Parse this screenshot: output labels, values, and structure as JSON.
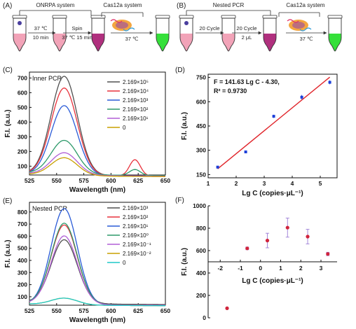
{
  "panels": {
    "A": {
      "label": "(A)",
      "system_label": "ONRPA system",
      "step1_temp": "37 ℃",
      "step1_time": "10 min",
      "step2_label": "Spin",
      "step2_temp": "37 ℃",
      "step2_time": "15 min",
      "cas_label": "Cas12a system",
      "cas_temp": "37 ℃"
    },
    "B": {
      "label": "(B)",
      "system_label": "Nested PCR",
      "step1": "20 Cycle",
      "step2": "20 Cycle",
      "step2_vol": "2 μL",
      "cas_label": "Cas12a system",
      "cas_temp": "37 ℃"
    }
  },
  "colors": {
    "c1": "#505050",
    "c2": "#e8323c",
    "c3": "#2a5bd7",
    "c4": "#2e9a6a",
    "c5": "#b05ed6",
    "c6": "#c8a000",
    "c7": "#1fc9c9",
    "marker_blue": "#1c3fd9",
    "marker_red": "#d0243c",
    "fit_line": "#e0242a",
    "err_purple": "#9a7bd6",
    "tube_pink": "#f2a3b8",
    "tube_magenta": "#b0307e",
    "tube_green": "#35e03a"
  },
  "chart_data": [
    {
      "panel": "(C)",
      "type": "line",
      "title": "Inner PCR",
      "xlabel": "Wavelength (nm)",
      "ylabel": "F.I. (a.u.)",
      "xlim": [
        525,
        650
      ],
      "ylim": [
        40,
        740
      ],
      "xticks": [
        "525",
        "550",
        "575",
        "600",
        "625",
        "650"
      ],
      "yticks": [
        "100",
        "200",
        "300",
        "400",
        "500",
        "600",
        "700"
      ],
      "legend": "top-right",
      "series": [
        {
          "name": "2.169×10⁵",
          "color_key": "c1",
          "peak": 720,
          "baseline": 50,
          "bump": 0
        },
        {
          "name": "2.169×10⁴",
          "color_key": "c2",
          "peak": 640,
          "baseline": 50,
          "bump": 110
        },
        {
          "name": "2.169×10³",
          "color_key": "c3",
          "peak": 520,
          "baseline": 48,
          "bump": 0
        },
        {
          "name": "2.169×10²",
          "color_key": "c4",
          "peak": 285,
          "baseline": 55,
          "bump": 40
        },
        {
          "name": "2.169×10¹",
          "color_key": "c5",
          "peak": 200,
          "baseline": 50,
          "bump": 0
        },
        {
          "name": "0",
          "color_key": "c6",
          "peak": 165,
          "baseline": 45,
          "bump": 0
        }
      ]
    },
    {
      "panel": "(D)",
      "type": "scatter",
      "equation": "F = 141.63 Lg C - 4.30,",
      "r2": "R² = 0.9730",
      "xlabel": "Lg C (copies·μL⁻¹)",
      "ylabel": "F.I. (a.u.)",
      "xlim": [
        1,
        5.6
      ],
      "ylim": [
        130,
        770
      ],
      "xticks": [
        1,
        2,
        3,
        4,
        5
      ],
      "yticks": [
        150,
        300,
        450,
        600,
        750
      ],
      "points": [
        {
          "x": 1.34,
          "y": 196,
          "err": 8
        },
        {
          "x": 2.34,
          "y": 290,
          "err": 6
        },
        {
          "x": 3.34,
          "y": 510,
          "err": 10
        },
        {
          "x": 4.34,
          "y": 628,
          "err": 14
        },
        {
          "x": 5.34,
          "y": 720,
          "err": 12
        }
      ],
      "fit": {
        "slope": 141.63,
        "intercept": -4.3,
        "x_range": [
          1.34,
          5.34
        ]
      }
    },
    {
      "panel": "(E)",
      "type": "line",
      "title": "Nested PCR",
      "xlabel": "Wavelength (nm)",
      "ylabel": "F.I. (a.u.)",
      "xlim": [
        525,
        650
      ],
      "ylim": [
        30,
        880
      ],
      "xticks": [
        "525",
        "550",
        "575",
        "600",
        "625",
        "650"
      ],
      "yticks": [
        "100",
        "200",
        "300",
        "400",
        "500",
        "600",
        "700",
        "800"
      ],
      "legend": "top-right",
      "series": [
        {
          "name": "2.169×10³",
          "color_key": "c1",
          "peak": 580,
          "baseline": 55,
          "bump": 0
        },
        {
          "name": "2.169×10²",
          "color_key": "c2",
          "peak": 700,
          "baseline": 45,
          "bump": 0
        },
        {
          "name": "2.169×10¹",
          "color_key": "c3",
          "peak": 835,
          "baseline": 40,
          "bump": 0
        },
        {
          "name": "2.169×10⁰",
          "color_key": "c4",
          "peak": 715,
          "baseline": 45,
          "bump": 0
        },
        {
          "name": "2.169×10⁻¹",
          "color_key": "c5",
          "peak": 610,
          "baseline": 45,
          "bump": 0
        },
        {
          "name": "2.169×10⁻²",
          "color_key": "c6",
          "peak": 95,
          "baseline": 40,
          "bump": 0
        },
        {
          "name": "0",
          "color_key": "c7",
          "peak": 95,
          "baseline": 40,
          "bump": 0
        }
      ]
    },
    {
      "panel": "(F)",
      "type": "scatter",
      "xlabel": "Lg C (copies·μL⁻¹)",
      "ylabel": "F.I. (a.u.)",
      "xlim": [
        -2.6,
        3.8
      ],
      "ylim": [
        0,
        1000
      ],
      "xaxis_at_y": 500,
      "xticks": [
        -2,
        -1,
        0,
        1,
        2,
        3
      ],
      "yticks": [
        0,
        200,
        400,
        600,
        800,
        1000
      ],
      "points": [
        {
          "x": -1.66,
          "y": 85,
          "err": 0
        },
        {
          "x": -0.66,
          "y": 620,
          "err": 12
        },
        {
          "x": 0.34,
          "y": 690,
          "err": 65
        },
        {
          "x": 1.34,
          "y": 805,
          "err": 85
        },
        {
          "x": 2.34,
          "y": 725,
          "err": 65
        },
        {
          "x": 3.34,
          "y": 570,
          "err": 15
        }
      ]
    }
  ]
}
